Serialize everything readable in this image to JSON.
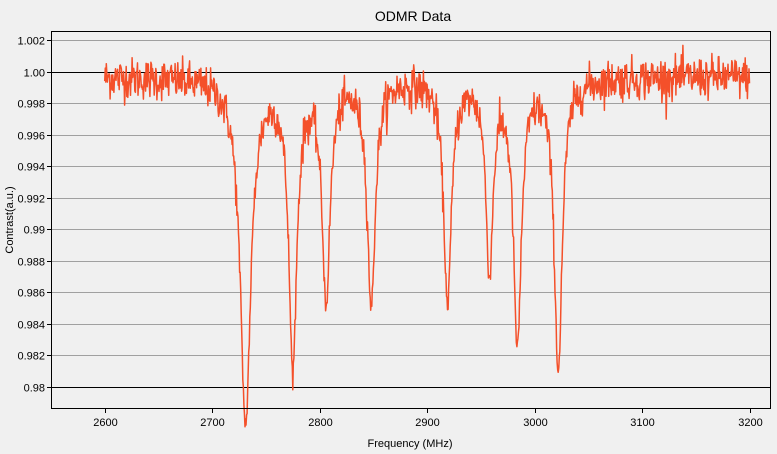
{
  "chart_data": {
    "type": "line",
    "title": "ODMR Data",
    "xlabel": "Frequency (MHz)",
    "ylabel": "Contrast(a.u.)",
    "xlim": [
      2550,
      3220
    ],
    "ylim": [
      0.9786,
      1.0026
    ],
    "xticks": [
      2600,
      2700,
      2800,
      2900,
      3000,
      3100,
      3200
    ],
    "xtick_labels": [
      "2600",
      "2700",
      "2800",
      "2900",
      "3000",
      "3100",
      "3200"
    ],
    "yticks": [
      0.98,
      0.982,
      0.984,
      0.986,
      0.988,
      0.99,
      0.992,
      0.994,
      0.996,
      0.998,
      1.0,
      1.002
    ],
    "ytick_labels": [
      "0.98",
      "0.982",
      "0.984",
      "0.986",
      "0.988",
      "0.99",
      "0.992",
      "0.994",
      "0.996",
      "0.998",
      "1.00",
      "1.002"
    ],
    "grid": "horizontal",
    "baseline": 0.9997,
    "series": [
      {
        "color": "#f4502a",
        "dips": [
          {
            "center": 2731,
            "depth": 0.0218,
            "width": 6.0
          },
          {
            "center": 2775,
            "depth": 0.018,
            "width": 4.5
          },
          {
            "center": 2806,
            "depth": 0.0138,
            "width": 4.5
          },
          {
            "center": 2848,
            "depth": 0.0143,
            "width": 4.5
          },
          {
            "center": 2919,
            "depth": 0.014,
            "width": 4.5
          },
          {
            "center": 2958,
            "depth": 0.012,
            "width": 4.0
          },
          {
            "center": 2984,
            "depth": 0.0167,
            "width": 4.5
          },
          {
            "center": 3022,
            "depth": 0.0184,
            "width": 4.5
          }
        ],
        "x_start": 2600,
        "x_end": 3200,
        "x_step": 0.5
      }
    ]
  }
}
